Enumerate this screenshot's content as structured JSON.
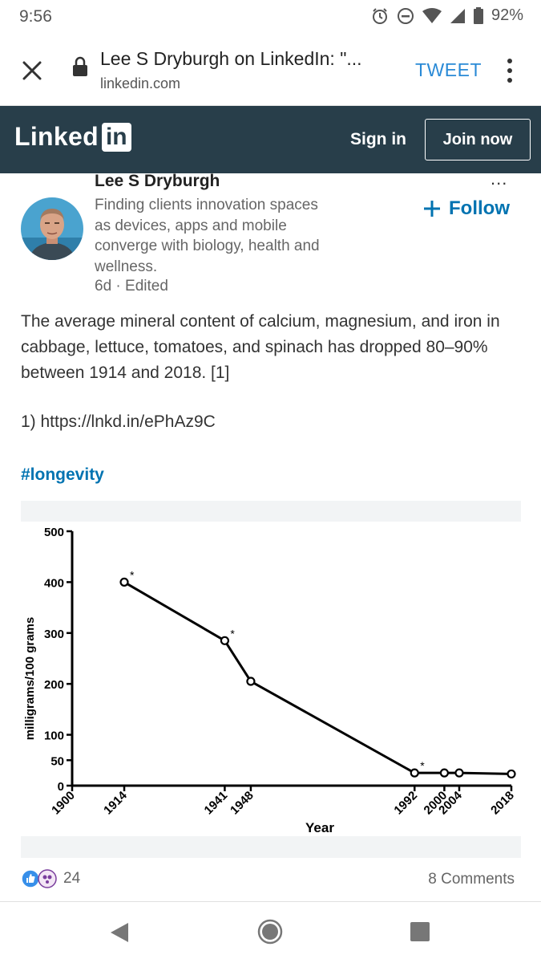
{
  "status_bar": {
    "time": "9:56",
    "battery": "92%"
  },
  "browser": {
    "title": "Lee S Dryburgh on LinkedIn: \"...",
    "domain": "linkedin.com",
    "tweet_label": "TWEET"
  },
  "linkedin_header": {
    "logo_text": "Linked",
    "logo_box": "in",
    "sign_in": "Sign in",
    "join_now": "Join now"
  },
  "post": {
    "more": "...",
    "author_name": "Lee S Dryburgh",
    "headline": "Finding clients innovation spaces as devices, apps and mobile converge with biology, health and wellness.",
    "meta": "6d · Edited",
    "follow_label": "Follow",
    "body": "The average mineral content of calcium, magnesium, and iron in cabbage, lettuce, tomatoes, and spinach has dropped 80–90% between 1914 and 2018. [1]",
    "link": "1) https://lnkd.in/ePhAz9C",
    "hashtag": "#longevity"
  },
  "social": {
    "like_count": "24",
    "comments": "8 Comments"
  },
  "colors": {
    "linkedin_navy": "#283e4a",
    "linkedin_blue": "#0073b1",
    "tweet_blue": "#2a8ad6"
  },
  "chart_data": {
    "type": "line",
    "title": "",
    "xlabel": "Year",
    "ylabel": "milligrams/100 grams",
    "x": [
      1914,
      1941,
      1948,
      1992,
      2000,
      2004,
      2018
    ],
    "values": [
      400,
      285,
      205,
      25,
      25,
      25,
      23
    ],
    "significance_markers": [
      1914,
      1941,
      1992
    ],
    "marker_symbol": "*",
    "xlim": [
      1900,
      2018
    ],
    "ylim": [
      0,
      500
    ],
    "x_ticks": [
      "1900",
      "1914",
      "1941",
      "1948",
      "1992",
      "2000",
      "2004",
      "2018"
    ],
    "y_ticks": [
      "0",
      "50",
      "100",
      "200",
      "300",
      "400",
      "500"
    ],
    "grid": false
  }
}
